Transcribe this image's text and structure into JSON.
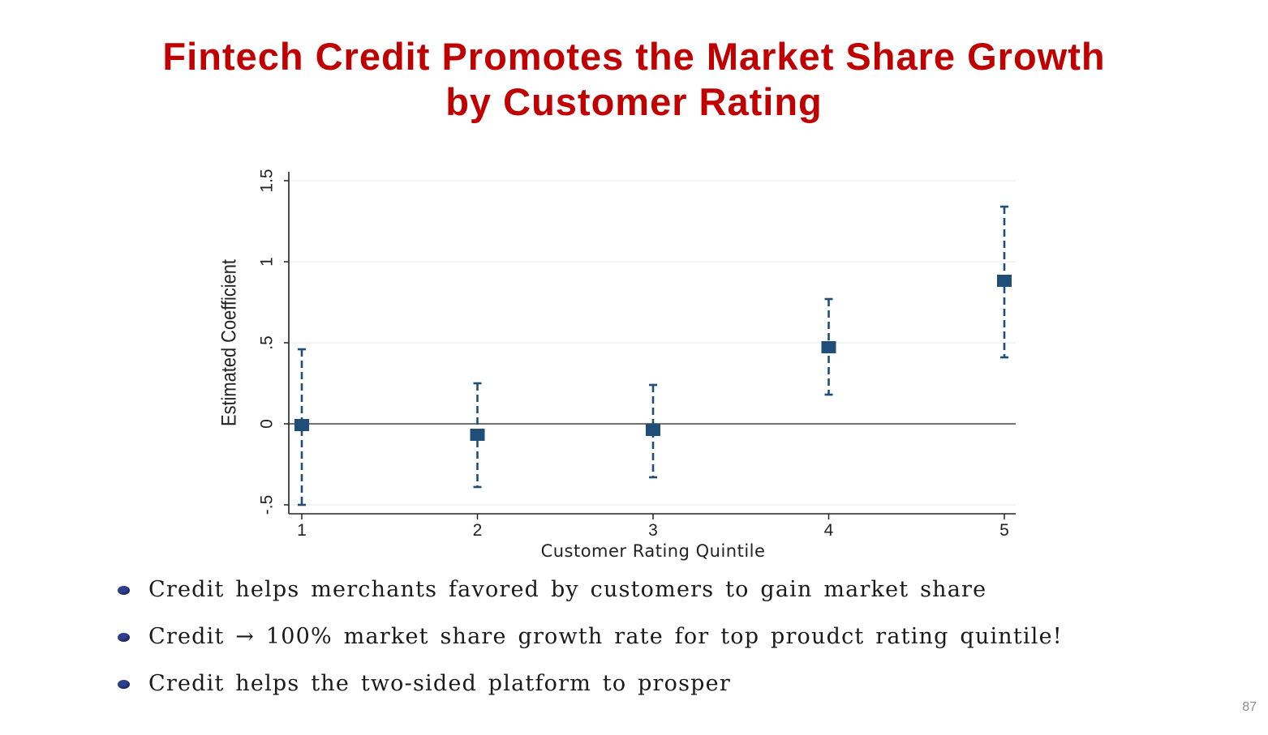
{
  "slide": {
    "title_line1": "Fintech Credit Promotes the Market Share Growth",
    "title_line2": "by Customer Rating",
    "page_number": "87",
    "title_color": "#c00000"
  },
  "bullets": [
    {
      "text": "Credit helps merchants favored by customers to gain market share"
    },
    {
      "text": "Credit → 100% market share growth rate for top proudct rating quintile!"
    },
    {
      "text": "Credit helps the two-sided platform to prosper"
    }
  ],
  "chart_data": {
    "type": "scatter",
    "title": "",
    "xlabel": "Customer Rating Quintile",
    "ylabel": "Estimated Coefficient",
    "xlim": [
      1,
      5
    ],
    "ylim": [
      -0.5,
      1.5
    ],
    "x_ticks": [
      1,
      2,
      3,
      4,
      5
    ],
    "x_tick_labels": [
      "1",
      "2",
      "3",
      "4",
      "5"
    ],
    "y_ticks": [
      -0.5,
      0,
      0.5,
      1,
      1.5
    ],
    "y_tick_labels": [
      "-.5",
      "0",
      ".5",
      "1",
      "1.5"
    ],
    "reference_line_y": 0,
    "grid": true,
    "marker_color": "#1f4e79",
    "points": [
      {
        "x": 1,
        "y": -0.01,
        "ci_low": -0.5,
        "ci_high": 0.46
      },
      {
        "x": 2,
        "y": -0.07,
        "ci_low": -0.39,
        "ci_high": 0.25
      },
      {
        "x": 3,
        "y": -0.04,
        "ci_low": -0.33,
        "ci_high": 0.24
      },
      {
        "x": 4,
        "y": 0.47,
        "ci_low": 0.18,
        "ci_high": 0.77
      },
      {
        "x": 5,
        "y": 0.88,
        "ci_low": 0.41,
        "ci_high": 1.34
      }
    ]
  }
}
